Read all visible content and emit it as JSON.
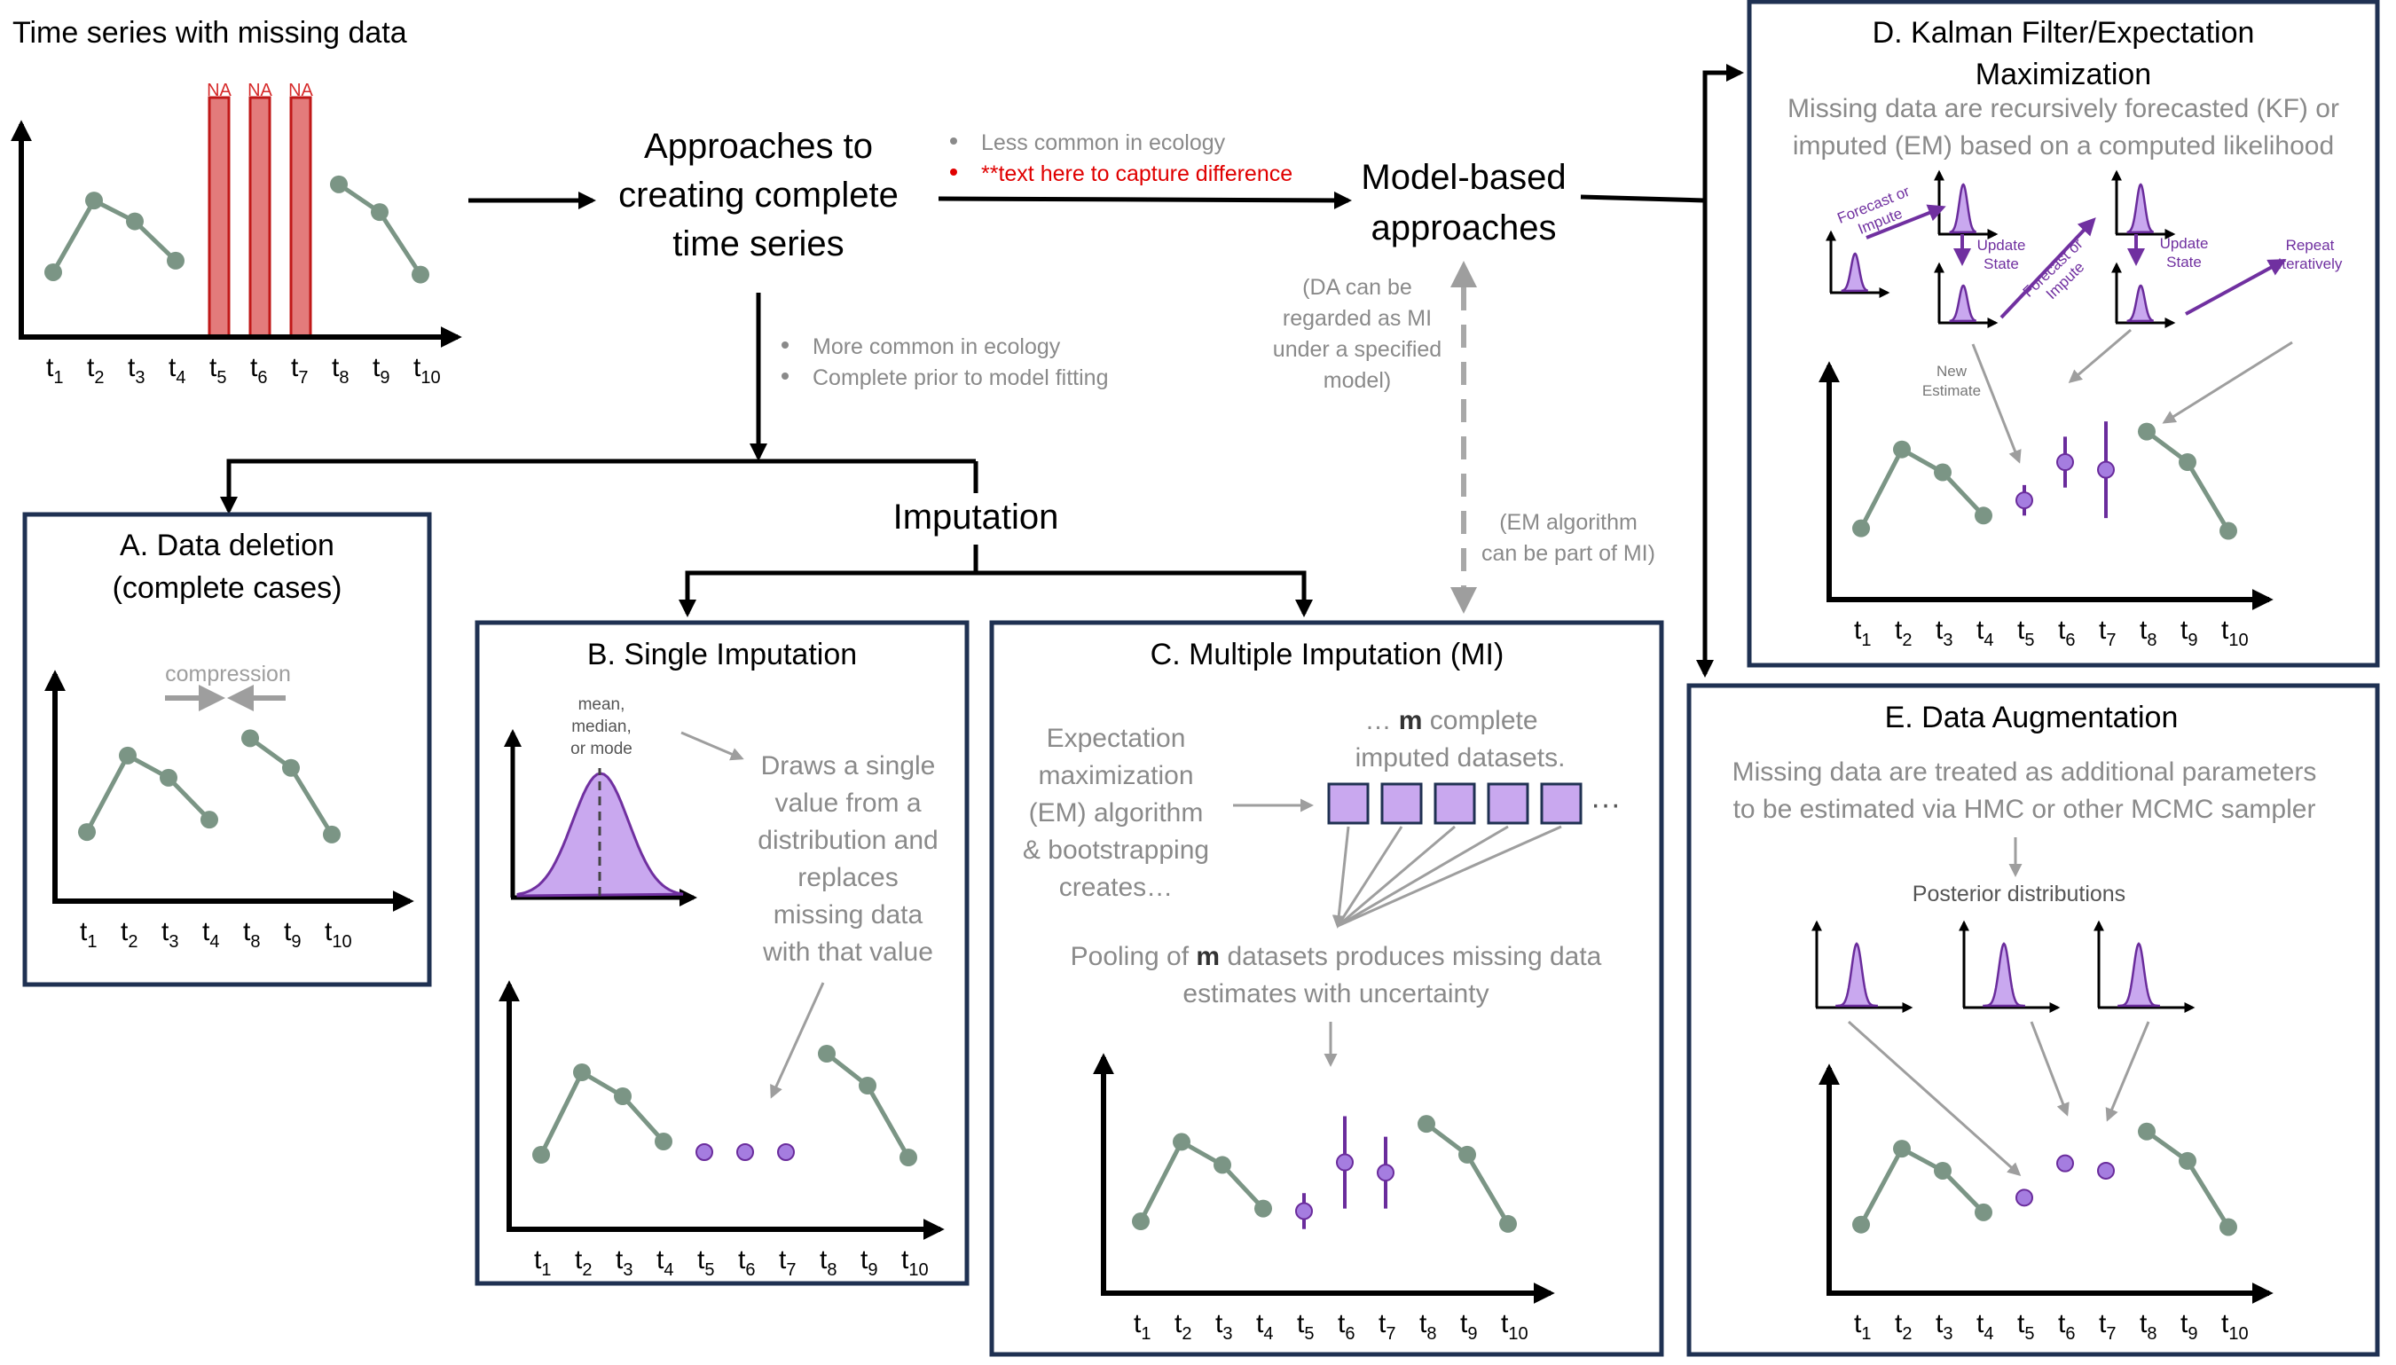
{
  "header": {
    "title": "Time series with missing data",
    "na_label": "NA",
    "approaches_title": [
      "Approaches to",
      "creating complete",
      "time series"
    ],
    "model_based_title": [
      "Model-based",
      "approaches"
    ],
    "imputation_title": "Imputation"
  },
  "notes": {
    "model_bullets": [
      "Less common in ecology",
      "**text here to capture difference"
    ],
    "imputation_bullets": [
      "More common in ecology",
      "Complete prior to model fitting"
    ],
    "da_note": [
      "(DA can be",
      "regarded as MI",
      "under a specified",
      "model)"
    ],
    "em_note": [
      "(EM algorithm",
      "can be part of MI)"
    ]
  },
  "colors": {
    "observed_point": "#7b9585",
    "imputed_point": "#a57de0",
    "imputed_stroke": "#6a2c9c",
    "na_bar": "#e37b7b",
    "na_text": "#d62a2a",
    "panel_border": "#1f3152",
    "gray_text": "#8a8a8a",
    "purple_text": "#7030a0"
  },
  "time_labels": {
    "full": [
      [
        "t",
        "1"
      ],
      [
        "t",
        "2"
      ],
      [
        "t",
        "3"
      ],
      [
        "t",
        "4"
      ],
      [
        "t",
        "5"
      ],
      [
        "t",
        "6"
      ],
      [
        "t",
        "7"
      ],
      [
        "t",
        "8"
      ],
      [
        "t",
        "9"
      ],
      [
        "t",
        "10"
      ]
    ],
    "deletion": [
      [
        "t",
        "1"
      ],
      [
        "t",
        "2"
      ],
      [
        "t",
        "3"
      ],
      [
        "t",
        "4"
      ],
      [
        "t",
        "8"
      ],
      [
        "t",
        "9"
      ],
      [
        "t",
        "10"
      ]
    ]
  },
  "panels": {
    "a": {
      "title": [
        "A. Data deletion",
        "(complete cases)"
      ],
      "compression_label": "compression"
    },
    "b": {
      "title": "B. Single Imputation",
      "stat_label": [
        "mean,",
        "median,",
        "or mode"
      ],
      "description": [
        "Draws a single",
        "value from a",
        "distribution and",
        "replaces",
        "missing data",
        "with that value"
      ]
    },
    "c": {
      "title": "C. Multiple Imputation (MI)",
      "em_text": [
        "Expectation",
        "maximization",
        "(EM) algorithm",
        "& bootstrapping",
        "creates…"
      ],
      "datasets_text": [
        "… m complete",
        "imputed datasets."
      ],
      "ellipsis": "···",
      "pooling_text": [
        "Pooling of m datasets produces missing data",
        "estimates with uncertainty"
      ]
    },
    "d": {
      "title": [
        "D. Kalman Filter/Expectation",
        "Maximization"
      ],
      "description": [
        "Missing data are recursively forecasted (KF) or",
        "imputed (EM) based on a computed likelihood"
      ],
      "forecast_label": [
        "Forecast or",
        "Impute"
      ],
      "update_label": [
        "Update",
        "State"
      ],
      "repeat_label": [
        "Repeat",
        "Iteratively"
      ],
      "new_estimate_label": [
        "New",
        "Estimate"
      ]
    },
    "e": {
      "title": "E. Data Augmentation",
      "description": [
        "Missing data are treated as additional parameters",
        "to be estimated via HMC or other MCMC sampler"
      ],
      "posterior_label": "Posterior distributions"
    }
  }
}
